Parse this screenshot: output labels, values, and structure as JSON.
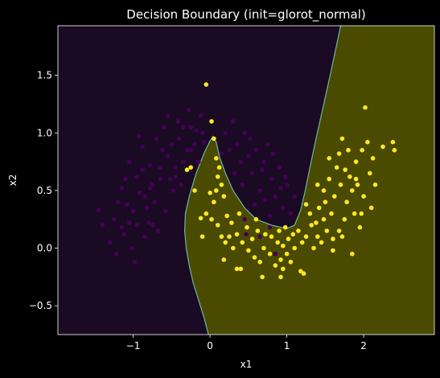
{
  "chart_data": {
    "type": "scatter",
    "title": "Decision Boundary (init=glorot_normal)",
    "xlabel": "x1",
    "ylabel": "x2",
    "xlim": [
      -1.98,
      2.92
    ],
    "ylim": [
      -0.75,
      1.93
    ],
    "xticks": [
      -1,
      0,
      1,
      2
    ],
    "xtick_labels": [
      "−1",
      "0",
      "1",
      "2"
    ],
    "yticks": [
      -0.5,
      0.0,
      0.5,
      1.0,
      1.5
    ],
    "ytick_labels": [
      "−0.5",
      "0.0",
      "0.5",
      "1.0",
      "1.5"
    ],
    "grid": false,
    "colors": {
      "class0_region": "#1a0a24",
      "class1_region": "#4a4a00",
      "boundary": "#6fb7a0",
      "class0_point": "#440154",
      "class1_point": "#fde725",
      "background": "#000000"
    },
    "boundary": [
      [
        -0.02,
        -0.75
      ],
      [
        -0.08,
        -0.6
      ],
      [
        -0.15,
        -0.45
      ],
      [
        -0.22,
        -0.3
      ],
      [
        -0.27,
        -0.15
      ],
      [
        -0.31,
        0.0
      ],
      [
        -0.33,
        0.15
      ],
      [
        -0.32,
        0.3
      ],
      [
        -0.27,
        0.45
      ],
      [
        -0.18,
        0.65
      ],
      [
        -0.08,
        0.82
      ],
      [
        0.0,
        0.93
      ],
      [
        0.04,
        0.97
      ],
      [
        0.08,
        0.92
      ],
      [
        0.12,
        0.8
      ],
      [
        0.2,
        0.65
      ],
      [
        0.3,
        0.5
      ],
      [
        0.45,
        0.35
      ],
      [
        0.6,
        0.25
      ],
      [
        0.8,
        0.2
      ],
      [
        1.0,
        0.17
      ],
      [
        1.1,
        0.2
      ],
      [
        1.18,
        0.33
      ],
      [
        1.24,
        0.5
      ],
      [
        1.3,
        0.7
      ],
      [
        1.38,
        0.95
      ],
      [
        1.48,
        1.25
      ],
      [
        1.58,
        1.55
      ],
      [
        1.7,
        1.93
      ]
    ],
    "series": [
      {
        "label": "0",
        "points": [
          [
            -1.45,
            0.33
          ],
          [
            -1.2,
            0.4
          ],
          [
            -1.15,
            0.18
          ],
          [
            -1.1,
            0.6
          ],
          [
            -1.05,
            0.75
          ],
          [
            -1.0,
            0.32
          ],
          [
            -0.95,
            0.62
          ],
          [
            -0.92,
            0.97
          ],
          [
            -0.88,
            0.88
          ],
          [
            -0.85,
            0.45
          ],
          [
            -0.8,
            0.22
          ],
          [
            -0.78,
            0.72
          ],
          [
            -0.75,
            0.55
          ],
          [
            -0.7,
            0.95
          ],
          [
            -0.65,
            0.6
          ],
          [
            -0.6,
            1.05
          ],
          [
            -0.58,
            0.32
          ],
          [
            -0.55,
            0.8
          ],
          [
            -0.5,
            0.9
          ],
          [
            -0.48,
            0.5
          ],
          [
            -0.45,
            0.7
          ],
          [
            -0.42,
            1.1
          ],
          [
            -0.4,
            0.95
          ],
          [
            -0.38,
            0.55
          ],
          [
            -0.35,
            0.75
          ],
          [
            -0.3,
            0.85
          ],
          [
            -0.28,
            1.2
          ],
          [
            -0.25,
            1.05
          ],
          [
            -0.2,
            0.9
          ],
          [
            -0.15,
            0.75
          ],
          [
            -0.12,
            1.15
          ],
          [
            -0.1,
            1.0
          ],
          [
            -1.3,
            0.05
          ],
          [
            -1.25,
            0.25
          ],
          [
            -1.12,
            0.12
          ],
          [
            -1.02,
            0.0
          ],
          [
            -0.95,
            0.2
          ],
          [
            -0.98,
            -0.12
          ],
          [
            -1.08,
            0.38
          ],
          [
            -0.82,
            0.35
          ],
          [
            -0.72,
            0.4
          ],
          [
            -0.68,
            0.15
          ],
          [
            -0.62,
            0.85
          ],
          [
            -0.52,
            0.6
          ],
          [
            -0.88,
            0.68
          ],
          [
            -0.78,
            0.52
          ],
          [
            -0.92,
            0.48
          ],
          [
            -1.15,
            0.52
          ],
          [
            -0.65,
            0.7
          ],
          [
            -0.55,
            1.15
          ],
          [
            -0.45,
            0.62
          ],
          [
            -0.35,
            1.05
          ],
          [
            -0.25,
            0.85
          ],
          [
            -0.18,
            1.02
          ],
          [
            -0.08,
            0.92
          ],
          [
            -1.4,
            0.2
          ],
          [
            -1.22,
            -0.05
          ],
          [
            -1.05,
            0.22
          ],
          [
            -0.85,
            0.1
          ],
          [
            -0.75,
            0.2
          ],
          [
            0.2,
            1.0
          ],
          [
            0.25,
            0.85
          ],
          [
            0.3,
            1.1
          ],
          [
            0.35,
            0.9
          ],
          [
            0.4,
            0.75
          ],
          [
            0.45,
            1.0
          ],
          [
            0.5,
            0.8
          ],
          [
            0.55,
            0.65
          ],
          [
            0.6,
            0.85
          ],
          [
            0.65,
            0.5
          ],
          [
            0.7,
            0.75
          ],
          [
            0.75,
            0.9
          ],
          [
            0.8,
            0.6
          ],
          [
            0.85,
            0.45
          ],
          [
            0.9,
            0.7
          ],
          [
            0.95,
            0.35
          ],
          [
            1.0,
            0.55
          ],
          [
            1.05,
            0.3
          ],
          [
            1.1,
            0.45
          ],
          [
            0.15,
            0.82
          ],
          [
            0.52,
            0.95
          ],
          [
            0.68,
            0.68
          ],
          [
            0.82,
            0.82
          ],
          [
            0.92,
            0.52
          ],
          [
            0.32,
            0.65
          ],
          [
            0.42,
            0.55
          ],
          [
            0.72,
            0.42
          ],
          [
            0.98,
            0.62
          ],
          [
            0.58,
            0.38
          ],
          [
            0.78,
            0.28
          ],
          [
            0.47,
            0.12
          ],
          [
            0.85,
            -0.05
          ],
          [
            0.45,
            0.25
          ],
          [
            0.65,
            0.1
          ],
          [
            0.78,
            0.18
          ]
        ]
      },
      {
        "label": "1",
        "points": [
          [
            -0.05,
            1.42
          ],
          [
            0.02,
            1.1
          ],
          [
            0.05,
            0.95
          ],
          [
            0.08,
            0.78
          ],
          [
            0.1,
            0.62
          ],
          [
            0.12,
            0.7
          ],
          [
            0.15,
            0.55
          ],
          [
            0.18,
            0.45
          ],
          [
            0.0,
            0.48
          ],
          [
            0.02,
            0.25
          ],
          [
            0.05,
            0.4
          ],
          [
            -0.2,
            0.5
          ],
          [
            -0.3,
            0.68
          ],
          [
            -0.25,
            0.7
          ],
          [
            -0.12,
            0.26
          ],
          [
            -0.1,
            0.1
          ],
          [
            -0.05,
            0.3
          ],
          [
            0.08,
            0.5
          ],
          [
            0.15,
            0.1
          ],
          [
            0.2,
            0.05
          ],
          [
            0.22,
            0.28
          ],
          [
            0.28,
            0.22
          ],
          [
            0.3,
            0.0
          ],
          [
            0.35,
            0.12
          ],
          [
            0.38,
            0.3
          ],
          [
            0.4,
            -0.18
          ],
          [
            0.42,
            0.05
          ],
          [
            0.48,
            0.18
          ],
          [
            0.5,
            -0.02
          ],
          [
            0.55,
            0.08
          ],
          [
            0.58,
            -0.08
          ],
          [
            0.62,
            0.15
          ],
          [
            0.65,
            -0.12
          ],
          [
            0.7,
            0.0
          ],
          [
            0.72,
            0.12
          ],
          [
            0.78,
            -0.05
          ],
          [
            0.8,
            0.1
          ],
          [
            0.85,
            -0.15
          ],
          [
            0.88,
            0.05
          ],
          [
            0.9,
            0.15
          ],
          [
            0.92,
            -0.1
          ],
          [
            0.95,
            0.02
          ],
          [
            0.98,
            0.18
          ],
          [
            1.0,
            -0.05
          ],
          [
            1.02,
            0.08
          ],
          [
            1.05,
            -0.12
          ],
          [
            1.08,
            0.12
          ],
          [
            1.1,
            0.0
          ],
          [
            1.15,
            0.15
          ],
          [
            1.18,
            -0.2
          ],
          [
            1.2,
            0.05
          ],
          [
            1.22,
            -0.22
          ],
          [
            1.25,
            0.1
          ],
          [
            1.3,
            0.3
          ],
          [
            1.32,
            0.2
          ],
          [
            1.35,
            0.0
          ],
          [
            1.38,
            0.22
          ],
          [
            1.4,
            0.55
          ],
          [
            1.42,
            0.35
          ],
          [
            1.45,
            0.05
          ],
          [
            1.48,
            0.25
          ],
          [
            1.5,
            0.4
          ],
          [
            1.52,
            0.15
          ],
          [
            1.55,
            0.6
          ],
          [
            1.58,
            0.3
          ],
          [
            1.6,
            -0.02
          ],
          [
            1.62,
            0.45
          ],
          [
            1.65,
            0.7
          ],
          [
            1.68,
            0.15
          ],
          [
            1.7,
            0.55
          ],
          [
            1.72,
            0.95
          ],
          [
            1.75,
            0.25
          ],
          [
            1.78,
            0.4
          ],
          [
            1.8,
            0.85
          ],
          [
            1.82,
            0.62
          ],
          [
            1.85,
            0.5
          ],
          [
            1.88,
            0.3
          ],
          [
            1.9,
            0.75
          ],
          [
            1.92,
            0.55
          ],
          [
            1.95,
            0.18
          ],
          [
            1.98,
            0.85
          ],
          [
            2.0,
            0.45
          ],
          [
            2.02,
            1.22
          ],
          [
            2.05,
            0.92
          ],
          [
            2.08,
            0.65
          ],
          [
            2.1,
            0.35
          ],
          [
            2.12,
            0.78
          ],
          [
            2.15,
            0.55
          ],
          [
            2.25,
            0.88
          ],
          [
            2.38,
            0.92
          ],
          [
            2.4,
            0.85
          ],
          [
            1.68,
            0.82
          ],
          [
            1.76,
            0.68
          ],
          [
            1.9,
            0.6
          ],
          [
            1.55,
            0.78
          ],
          [
            1.85,
            -0.05
          ],
          [
            1.72,
            0.1
          ],
          [
            1.4,
            0.1
          ],
          [
            0.95,
            -0.18
          ],
          [
            0.68,
            -0.25
          ],
          [
            0.92,
            -0.25
          ],
          [
            0.6,
            0.25
          ],
          [
            0.35,
            -0.18
          ],
          [
            0.1,
            0.2
          ],
          [
            1.6,
            0.08
          ],
          [
            1.25,
            0.38
          ],
          [
            1.48,
            0.5
          ],
          [
            1.97,
            0.3
          ],
          [
            0.25,
            0.1
          ],
          [
            0.18,
            -0.1
          ]
        ]
      }
    ]
  }
}
